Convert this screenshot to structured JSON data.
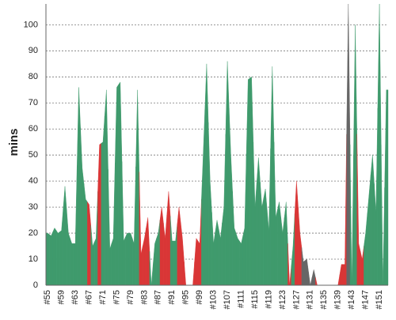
{
  "chart_data": {
    "type": "area",
    "y_label": "mins",
    "categories": [
      "#55",
      null,
      null,
      null,
      "#59",
      null,
      null,
      null,
      "#63",
      null,
      null,
      null,
      "#67",
      null,
      null,
      null,
      "#71",
      null,
      null,
      null,
      "#75",
      null,
      null,
      null,
      "#79",
      null,
      null,
      null,
      "#83",
      null,
      null,
      null,
      "#87",
      null,
      null,
      null,
      "#91",
      null,
      null,
      null,
      "#95",
      null,
      null,
      null,
      "#99",
      null,
      null,
      null,
      "#103",
      null,
      null,
      null,
      "#107",
      null,
      null,
      null,
      "#111",
      null,
      null,
      null,
      "#115",
      null,
      null,
      null,
      "#119",
      null,
      null,
      null,
      "#123",
      null,
      null,
      null,
      "#127",
      null,
      null,
      null,
      "#131",
      null,
      null,
      null,
      "#135",
      null,
      null,
      null,
      "#139",
      null,
      null,
      null,
      "#143",
      null,
      null,
      null,
      "#147",
      null,
      null,
      null,
      "#151",
      null,
      null
    ],
    "values": [
      20,
      19,
      22,
      20,
      21,
      38,
      20,
      16,
      16,
      76,
      45,
      33,
      31,
      15,
      18,
      54,
      55,
      75,
      14,
      18,
      76,
      78,
      17,
      20,
      20,
      16,
      75,
      12,
      18,
      26,
      0,
      16,
      20,
      30,
      18,
      36,
      17,
      17,
      30,
      18,
      0,
      0,
      0,
      18,
      16,
      50,
      85,
      40,
      16,
      25,
      18,
      30,
      86,
      50,
      22,
      18,
      16,
      22,
      79,
      80,
      30,
      49,
      30,
      37,
      21,
      84,
      26,
      32,
      20,
      32,
      0,
      15,
      40,
      20,
      9,
      10,
      0,
      6,
      0,
      0,
      0,
      0,
      0,
      0,
      0,
      8,
      8,
      108,
      0,
      100,
      16,
      10,
      20,
      35,
      50,
      28,
      108,
      0,
      75
    ],
    "colors": [
      "#3f9a6c",
      "#3f9a6c",
      "#3f9a6c",
      "#3f9a6c",
      "#3f9a6c",
      "#3f9a6c",
      "#3f9a6c",
      "#3f9a6c",
      "#3f9a6c",
      "#3f9a6c",
      "#3f9a6c",
      "#3f9a6c",
      "#d93636",
      "#3f9a6c",
      "#3f9a6c",
      "#d93636",
      "#3f9a6c",
      "#3f9a6c",
      "#3f9a6c",
      "#3f9a6c",
      "#3f9a6c",
      "#3f9a6c",
      "#3f9a6c",
      "#3f9a6c",
      "#3f9a6c",
      "#3f9a6c",
      "#3f9a6c",
      "#d93636",
      "#d93636",
      "#d93636",
      "#3f9a6c",
      "#3f9a6c",
      "#3f9a6c",
      "#d93636",
      "#d93636",
      "#d93636",
      "#3f9a6c",
      "#3f9a6c",
      "#d93636",
      "#d93636",
      "#d93636",
      "#d93636",
      "#d93636",
      "#d93636",
      "#d93636",
      "#3f9a6c",
      "#3f9a6c",
      "#3f9a6c",
      "#3f9a6c",
      "#3f9a6c",
      "#3f9a6c",
      "#3f9a6c",
      "#3f9a6c",
      "#3f9a6c",
      "#3f9a6c",
      "#3f9a6c",
      "#3f9a6c",
      "#3f9a6c",
      "#3f9a6c",
      "#3f9a6c",
      "#3f9a6c",
      "#3f9a6c",
      "#3f9a6c",
      "#3f9a6c",
      "#3f9a6c",
      "#3f9a6c",
      "#3f9a6c",
      "#3f9a6c",
      "#3f9a6c",
      "#3f9a6c",
      "#d93636",
      "#3f9a6c",
      "#d93636",
      "#d93636",
      "#666666",
      "#666666",
      "#666666",
      "#666666",
      "#d93636",
      "#d93636",
      "#d93636",
      "#d93636",
      "#d93636",
      "#d93636",
      "#d93636",
      "#d93636",
      "#d93636",
      "#666666",
      "#3f9a6c",
      "#3f9a6c",
      "#d93636",
      "#d93636",
      "#3f9a6c",
      "#3f9a6c",
      "#3f9a6c",
      "#3f9a6c",
      "#3f9a6c",
      "#3f9a6c",
      "#3f9a6c"
    ],
    "ylim": [
      0,
      108
    ],
    "yticks": [
      0,
      10,
      20,
      30,
      40,
      50,
      60,
      70,
      80,
      90,
      100
    ],
    "grid": true
  }
}
